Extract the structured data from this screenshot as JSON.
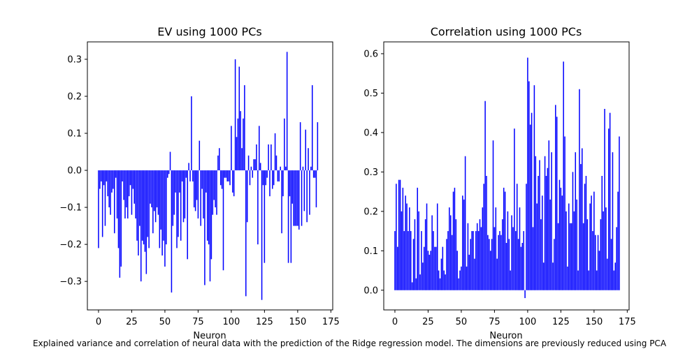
{
  "caption": "Explained variance and correlation of neural data with the prediction of the Ridge regression model. The dimensions are previously reduced using PCA",
  "colors": {
    "bar": "#0000ff",
    "axis": "#000000",
    "background": "#ffffff"
  },
  "chart_data": [
    {
      "type": "bar",
      "title": "EV using 1000 PCs",
      "xlabel": "Neuron",
      "ylabel": "",
      "xlim": [
        -8.4,
        176.4
      ],
      "ylim": [
        -0.377,
        0.347
      ],
      "xticks": [
        0,
        25,
        50,
        75,
        100,
        125,
        150,
        175
      ],
      "yticks": [
        -0.3,
        -0.2,
        -0.1,
        0.0,
        0.1,
        0.2,
        0.3
      ],
      "ytick_labels": [
        "−0.3",
        "−0.2",
        "−0.1",
        "0.0",
        "0.1",
        "0.2",
        "0.3"
      ],
      "grid": false,
      "values": [
        -0.21,
        -0.05,
        -0.03,
        -0.18,
        -0.04,
        -0.15,
        -0.03,
        -0.07,
        -0.1,
        -0.12,
        -0.06,
        -0.05,
        -0.17,
        -0.02,
        -0.13,
        -0.21,
        -0.29,
        -0.26,
        -0.03,
        -0.08,
        -0.13,
        -0.1,
        -0.13,
        -0.07,
        -0.04,
        -0.12,
        -0.05,
        -0.09,
        -0.13,
        -0.19,
        -0.23,
        -0.15,
        -0.3,
        -0.19,
        -0.2,
        -0.22,
        -0.28,
        -0.18,
        -0.21,
        -0.09,
        -0.1,
        -0.17,
        -0.11,
        -0.14,
        -0.1,
        -0.12,
        -0.21,
        -0.16,
        -0.23,
        -0.19,
        -0.26,
        -0.2,
        -0.02,
        -0.01,
        0.05,
        -0.33,
        -0.15,
        -0.12,
        -0.06,
        -0.21,
        -0.18,
        -0.06,
        -0.19,
        -0.03,
        -0.14,
        -0.13,
        -0.02,
        -0.24,
        0.02,
        -0.03,
        0.2,
        -0.03,
        -0.1,
        -0.11,
        -0.08,
        -0.13,
        0.08,
        -0.15,
        -0.05,
        -0.13,
        -0.31,
        -0.06,
        -0.19,
        -0.2,
        -0.3,
        -0.24,
        -0.12,
        -0.08,
        -0.1,
        -0.12,
        0.04,
        0.06,
        -0.04,
        -0.05,
        -0.27,
        -0.02,
        -0.02,
        -0.03,
        -0.03,
        -0.04,
        0.12,
        -0.06,
        -0.07,
        0.3,
        0.09,
        0.14,
        0.28,
        0.16,
        0.06,
        0.14,
        0.23,
        -0.34,
        -0.14,
        0.04,
        -0.04,
        0.01,
        -0.02,
        0.03,
        0.03,
        0.07,
        -0.2,
        0.12,
        0.02,
        -0.35,
        -0.04,
        -0.25,
        -0.04,
        -0.02,
        0.07,
        -0.07,
        0.07,
        -0.05,
        -0.04,
        0.1,
        0.04,
        -0.03,
        -0.03,
        0.01,
        -0.17,
        -0.07,
        0.14,
        0.01,
        0.32,
        -0.25,
        -0.07,
        -0.25,
        -0.09,
        -0.15,
        -0.15,
        -0.15,
        -0.15,
        -0.16,
        0.13,
        -0.15,
        0.01,
        -0.11,
        0.11,
        -0.14,
        0.06,
        -0.12,
        0.01,
        0.23,
        -0.02,
        -0.02,
        -0.1,
        0.13
      ]
    },
    {
      "type": "bar",
      "title": "Correlation using 1000 PCs",
      "xlabel": "Neuron",
      "ylabel": "",
      "xlim": [
        -8.4,
        176.4
      ],
      "ylim": [
        -0.05,
        0.63
      ],
      "xticks": [
        0,
        25,
        50,
        75,
        100,
        125,
        150,
        175
      ],
      "yticks": [
        0.0,
        0.1,
        0.2,
        0.3,
        0.4,
        0.5,
        0.6
      ],
      "ytick_labels": [
        "0.0",
        "0.1",
        "0.2",
        "0.3",
        "0.4",
        "0.5",
        "0.6"
      ],
      "grid": false,
      "values": [
        0.15,
        0.27,
        0.11,
        0.28,
        0.28,
        0.2,
        0.26,
        0.15,
        0.24,
        0.22,
        0.15,
        0.21,
        0.15,
        0.02,
        0.13,
        0.18,
        0.03,
        0.26,
        0.2,
        0.04,
        0.15,
        0.07,
        0.11,
        0.18,
        0.22,
        0.1,
        0.09,
        0.1,
        0.19,
        0.15,
        0.11,
        0.11,
        0.22,
        0.05,
        0.03,
        0.08,
        0.11,
        0.05,
        0.04,
        0.13,
        0.15,
        0.21,
        0.19,
        0.14,
        0.25,
        0.26,
        0.18,
        0.1,
        0.03,
        0.05,
        0.06,
        0.24,
        0.23,
        0.34,
        0.06,
        0.17,
        0.09,
        0.13,
        0.15,
        0.15,
        0.08,
        0.15,
        0.17,
        0.15,
        0.18,
        0.16,
        0.21,
        0.27,
        0.48,
        0.29,
        0.14,
        0.13,
        0.1,
        0.13,
        0.38,
        0.16,
        0.21,
        0.08,
        0.14,
        0.15,
        0.14,
        0.18,
        0.26,
        0.25,
        0.12,
        0.2,
        0.13,
        0.05,
        0.19,
        0.16,
        0.41,
        0.15,
        0.27,
        0.13,
        0.21,
        0.11,
        0.12,
        0.15,
        -0.02,
        0.27,
        0.59,
        0.53,
        0.42,
        0.45,
        0.16,
        0.52,
        0.34,
        0.22,
        0.29,
        0.33,
        0.18,
        0.24,
        0.07,
        0.34,
        0.29,
        0.31,
        0.38,
        0.23,
        0.35,
        0.07,
        0.13,
        0.47,
        0.44,
        0.17,
        0.28,
        0.26,
        0.24,
        0.58,
        0.39,
        0.2,
        0.06,
        0.22,
        0.17,
        0.17,
        0.3,
        0.2,
        0.35,
        0.23,
        0.05,
        0.51,
        0.32,
        0.36,
        0.17,
        0.27,
        0.29,
        0.18,
        0.05,
        0.22,
        0.24,
        0.15,
        0.25,
        0.14,
        0.05,
        0.14,
        0.1,
        0.18,
        0.29,
        0.2,
        0.46,
        0.21,
        0.08,
        0.41,
        0.45,
        0.13,
        0.35,
        0.05,
        0.07,
        0.16,
        0.25,
        0.39
      ]
    }
  ]
}
